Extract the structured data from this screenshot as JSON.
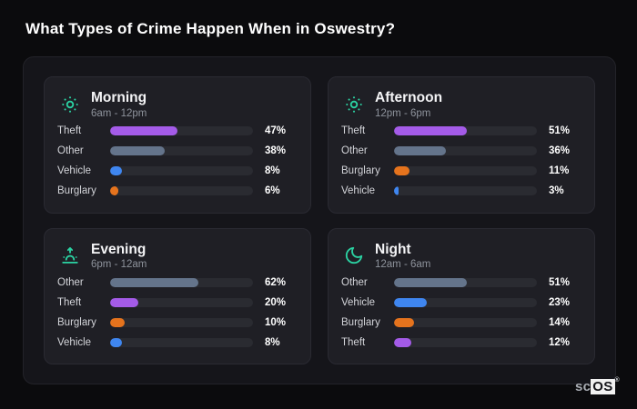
{
  "page": {
    "title": "What Types of Crime Happen When in Oswestry?"
  },
  "watermark": {
    "prefix": "sc",
    "brand": "OS",
    "registered": "®"
  },
  "colors": {
    "accent_icon": "#2bd3a3",
    "theft": "#a45be8",
    "other": "#64748b",
    "vehicle": "#3f86f0",
    "burglary": "#e5731d",
    "track": "#2a2b31",
    "card_bg": "#1f1f25",
    "panel_bg": "#15151a",
    "page_bg": "#0b0b0d"
  },
  "chart_data": [
    {
      "type": "bar",
      "orientation": "horizontal",
      "title": "Morning",
      "subtitle": "6am - 12pm",
      "icon": "sun-icon",
      "unit": "%",
      "xlim": [
        0,
        100
      ],
      "grid": false,
      "legend": false,
      "categories": [
        "Theft",
        "Other",
        "Vehicle",
        "Burglary"
      ],
      "values": [
        47,
        38,
        8,
        6
      ],
      "bar_colors": [
        "theft",
        "other",
        "vehicle",
        "burglary"
      ]
    },
    {
      "type": "bar",
      "orientation": "horizontal",
      "title": "Afternoon",
      "subtitle": "12pm - 6pm",
      "icon": "sun-icon",
      "unit": "%",
      "xlim": [
        0,
        100
      ],
      "grid": false,
      "legend": false,
      "categories": [
        "Theft",
        "Other",
        "Burglary",
        "Vehicle"
      ],
      "values": [
        51,
        36,
        11,
        3
      ],
      "bar_colors": [
        "theft",
        "other",
        "burglary",
        "vehicle"
      ]
    },
    {
      "type": "bar",
      "orientation": "horizontal",
      "title": "Evening",
      "subtitle": "6pm - 12am",
      "icon": "sunrise-icon",
      "unit": "%",
      "xlim": [
        0,
        100
      ],
      "grid": false,
      "legend": false,
      "categories": [
        "Other",
        "Theft",
        "Burglary",
        "Vehicle"
      ],
      "values": [
        62,
        20,
        10,
        8
      ],
      "bar_colors": [
        "other",
        "theft",
        "burglary",
        "vehicle"
      ]
    },
    {
      "type": "bar",
      "orientation": "horizontal",
      "title": "Night",
      "subtitle": "12am - 6am",
      "icon": "moon-icon",
      "unit": "%",
      "xlim": [
        0,
        100
      ],
      "grid": false,
      "legend": false,
      "categories": [
        "Other",
        "Vehicle",
        "Burglary",
        "Theft"
      ],
      "values": [
        51,
        23,
        14,
        12
      ],
      "bar_colors": [
        "other",
        "vehicle",
        "burglary",
        "theft"
      ]
    }
  ]
}
